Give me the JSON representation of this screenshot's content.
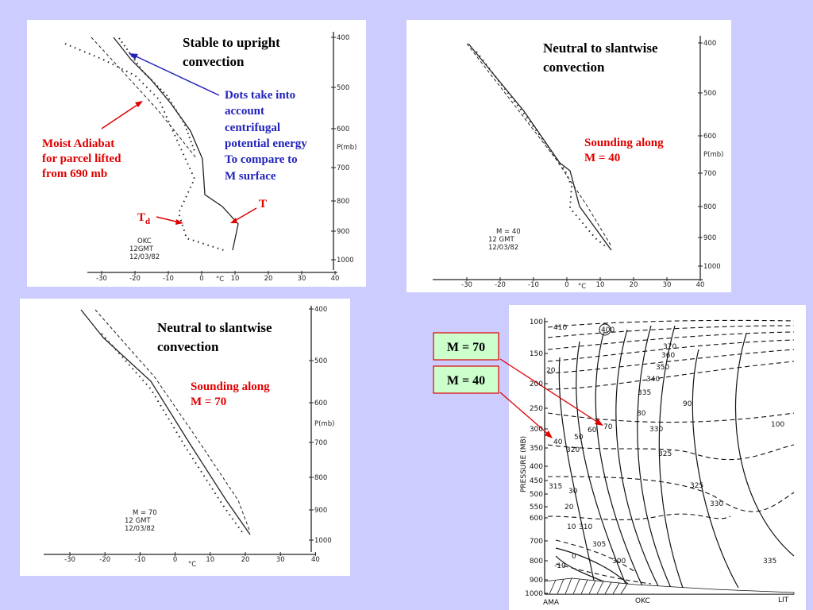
{
  "slide": {
    "upright": {
      "title": [
        "Stable to upright",
        "convection"
      ],
      "note_dots": [
        "Dots take into",
        "account",
        "centrifugal",
        "potential energy",
        "To compare to",
        "M surface"
      ],
      "note_adiabat": [
        "Moist Adiabat",
        "for parcel lifted",
        "from 690 mb"
      ],
      "label_t": "T",
      "label_td": {
        "main": "T",
        "sub": "d"
      },
      "stamp": [
        "OKC",
        "12GMT",
        "12/03/82"
      ],
      "pressure_ticks": [
        400,
        500,
        600,
        700,
        800,
        900,
        1000
      ],
      "pressure_unit": "P(mb)",
      "temp_ticks": [
        -30,
        -20,
        -10,
        0,
        10,
        20,
        30,
        40
      ],
      "temp_unit": "°C"
    },
    "slantwise_40": {
      "title": [
        "Neutral to slantwise",
        "convection"
      ],
      "note": [
        "Sounding along",
        "M = 40"
      ],
      "stamp": [
        "M = 40",
        "12 GMT",
        "12/03/82"
      ],
      "pressure_ticks": [
        400,
        500,
        600,
        700,
        800,
        900,
        1000
      ],
      "pressure_unit": "P(mb)",
      "temp_ticks": [
        -30,
        -20,
        -10,
        0,
        10,
        20,
        30,
        40
      ],
      "temp_unit": "°C"
    },
    "slantwise_70": {
      "title": [
        "Neutral to slantwise",
        "convection"
      ],
      "note": [
        "Sounding along",
        "M = 70"
      ],
      "stamp": [
        "M = 70",
        "12 GMT",
        "12/03/82"
      ],
      "pressure_ticks": [
        400,
        500,
        600,
        700,
        800,
        900,
        1000
      ],
      "pressure_unit": "P(mb)",
      "temp_ticks": [
        -30,
        -20,
        -10,
        0,
        10,
        20,
        30,
        40
      ],
      "temp_unit": "°C"
    },
    "cross_section": {
      "boxes": [
        "M = 70",
        "M = 40"
      ],
      "pressure_label": "PRESSURE (MB)",
      "pressure_ticks": [
        100,
        150,
        200,
        250,
        300,
        350,
        400,
        450,
        500,
        550,
        600,
        700,
        800,
        900,
        1000
      ],
      "stations": [
        "AMA",
        "OKC",
        "LIT"
      ],
      "theta_labels": [
        410,
        400,
        370,
        360,
        350,
        340,
        335,
        330,
        325,
        325,
        330,
        320,
        315,
        310,
        305,
        300,
        335
      ],
      "m_labels": [
        100,
        90,
        80,
        70,
        60,
        50,
        40,
        30,
        20,
        10,
        0,
        -10,
        20
      ]
    }
  }
}
